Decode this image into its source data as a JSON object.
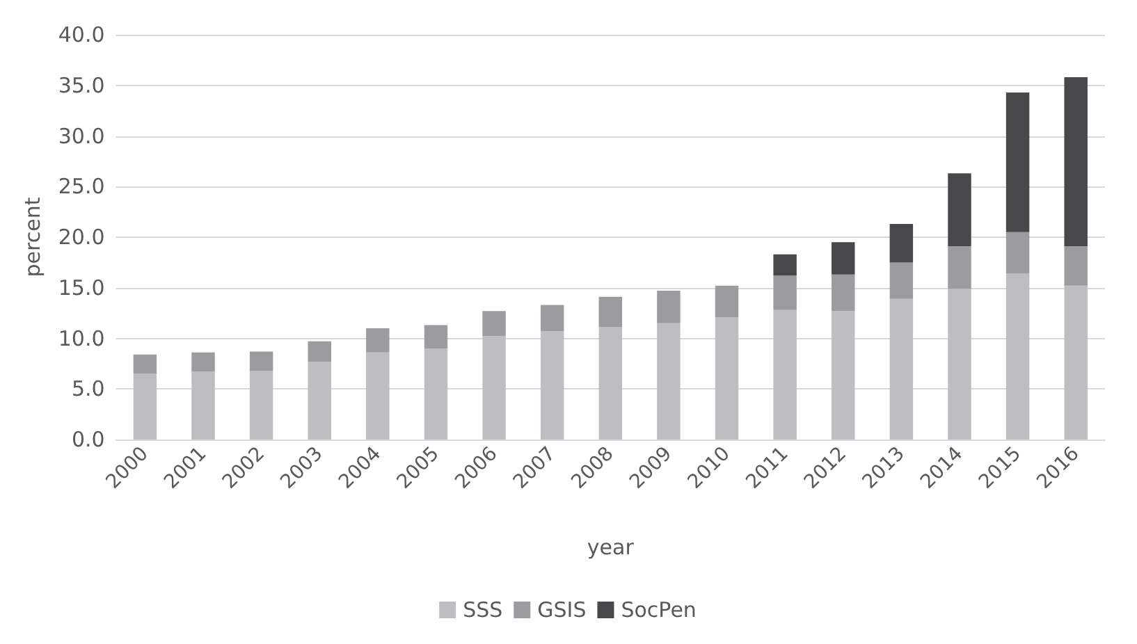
{
  "chart_data": {
    "type": "bar",
    "stacked": true,
    "xlabel": "year",
    "ylabel": "percent",
    "categories": [
      "2000",
      "2001",
      "2002",
      "2003",
      "2004",
      "2005",
      "2006",
      "2007",
      "2008",
      "2009",
      "2010",
      "2011",
      "2012",
      "2013",
      "2014",
      "2015",
      "2016"
    ],
    "series": [
      {
        "name": "SSS",
        "color": "#bdbec2",
        "values": [
          6.5,
          6.7,
          6.8,
          7.7,
          8.6,
          9.0,
          10.2,
          10.7,
          11.1,
          11.5,
          12.1,
          12.8,
          12.7,
          13.9,
          14.9,
          16.4,
          15.2
        ]
      },
      {
        "name": "GSIS",
        "color": "#9b9c9f",
        "values": [
          1.9,
          1.9,
          1.9,
          2.0,
          2.4,
          2.3,
          2.5,
          2.6,
          3.0,
          3.2,
          3.1,
          3.4,
          3.6,
          3.6,
          4.2,
          4.1,
          3.9
        ]
      },
      {
        "name": "SocPen",
        "color": "#47484a",
        "values": [
          null,
          null,
          null,
          null,
          null,
          null,
          null,
          null,
          null,
          null,
          null,
          2.1,
          3.2,
          3.8,
          7.2,
          13.8,
          16.7
        ]
      }
    ],
    "ylim": [
      0,
      40
    ],
    "yticks": [
      {
        "value": 0,
        "label": "0.0"
      },
      {
        "value": 5,
        "label": "5.0"
      },
      {
        "value": 10,
        "label": "10.0"
      },
      {
        "value": 15,
        "label": "15.0"
      },
      {
        "value": 20,
        "label": "20.0"
      },
      {
        "value": 25,
        "label": "25.0"
      },
      {
        "value": 30,
        "label": "30.0"
      },
      {
        "value": 35,
        "label": "35.0"
      },
      {
        "value": 40,
        "label": "40.0"
      }
    ],
    "grid": "y",
    "legend": "bottom"
  }
}
